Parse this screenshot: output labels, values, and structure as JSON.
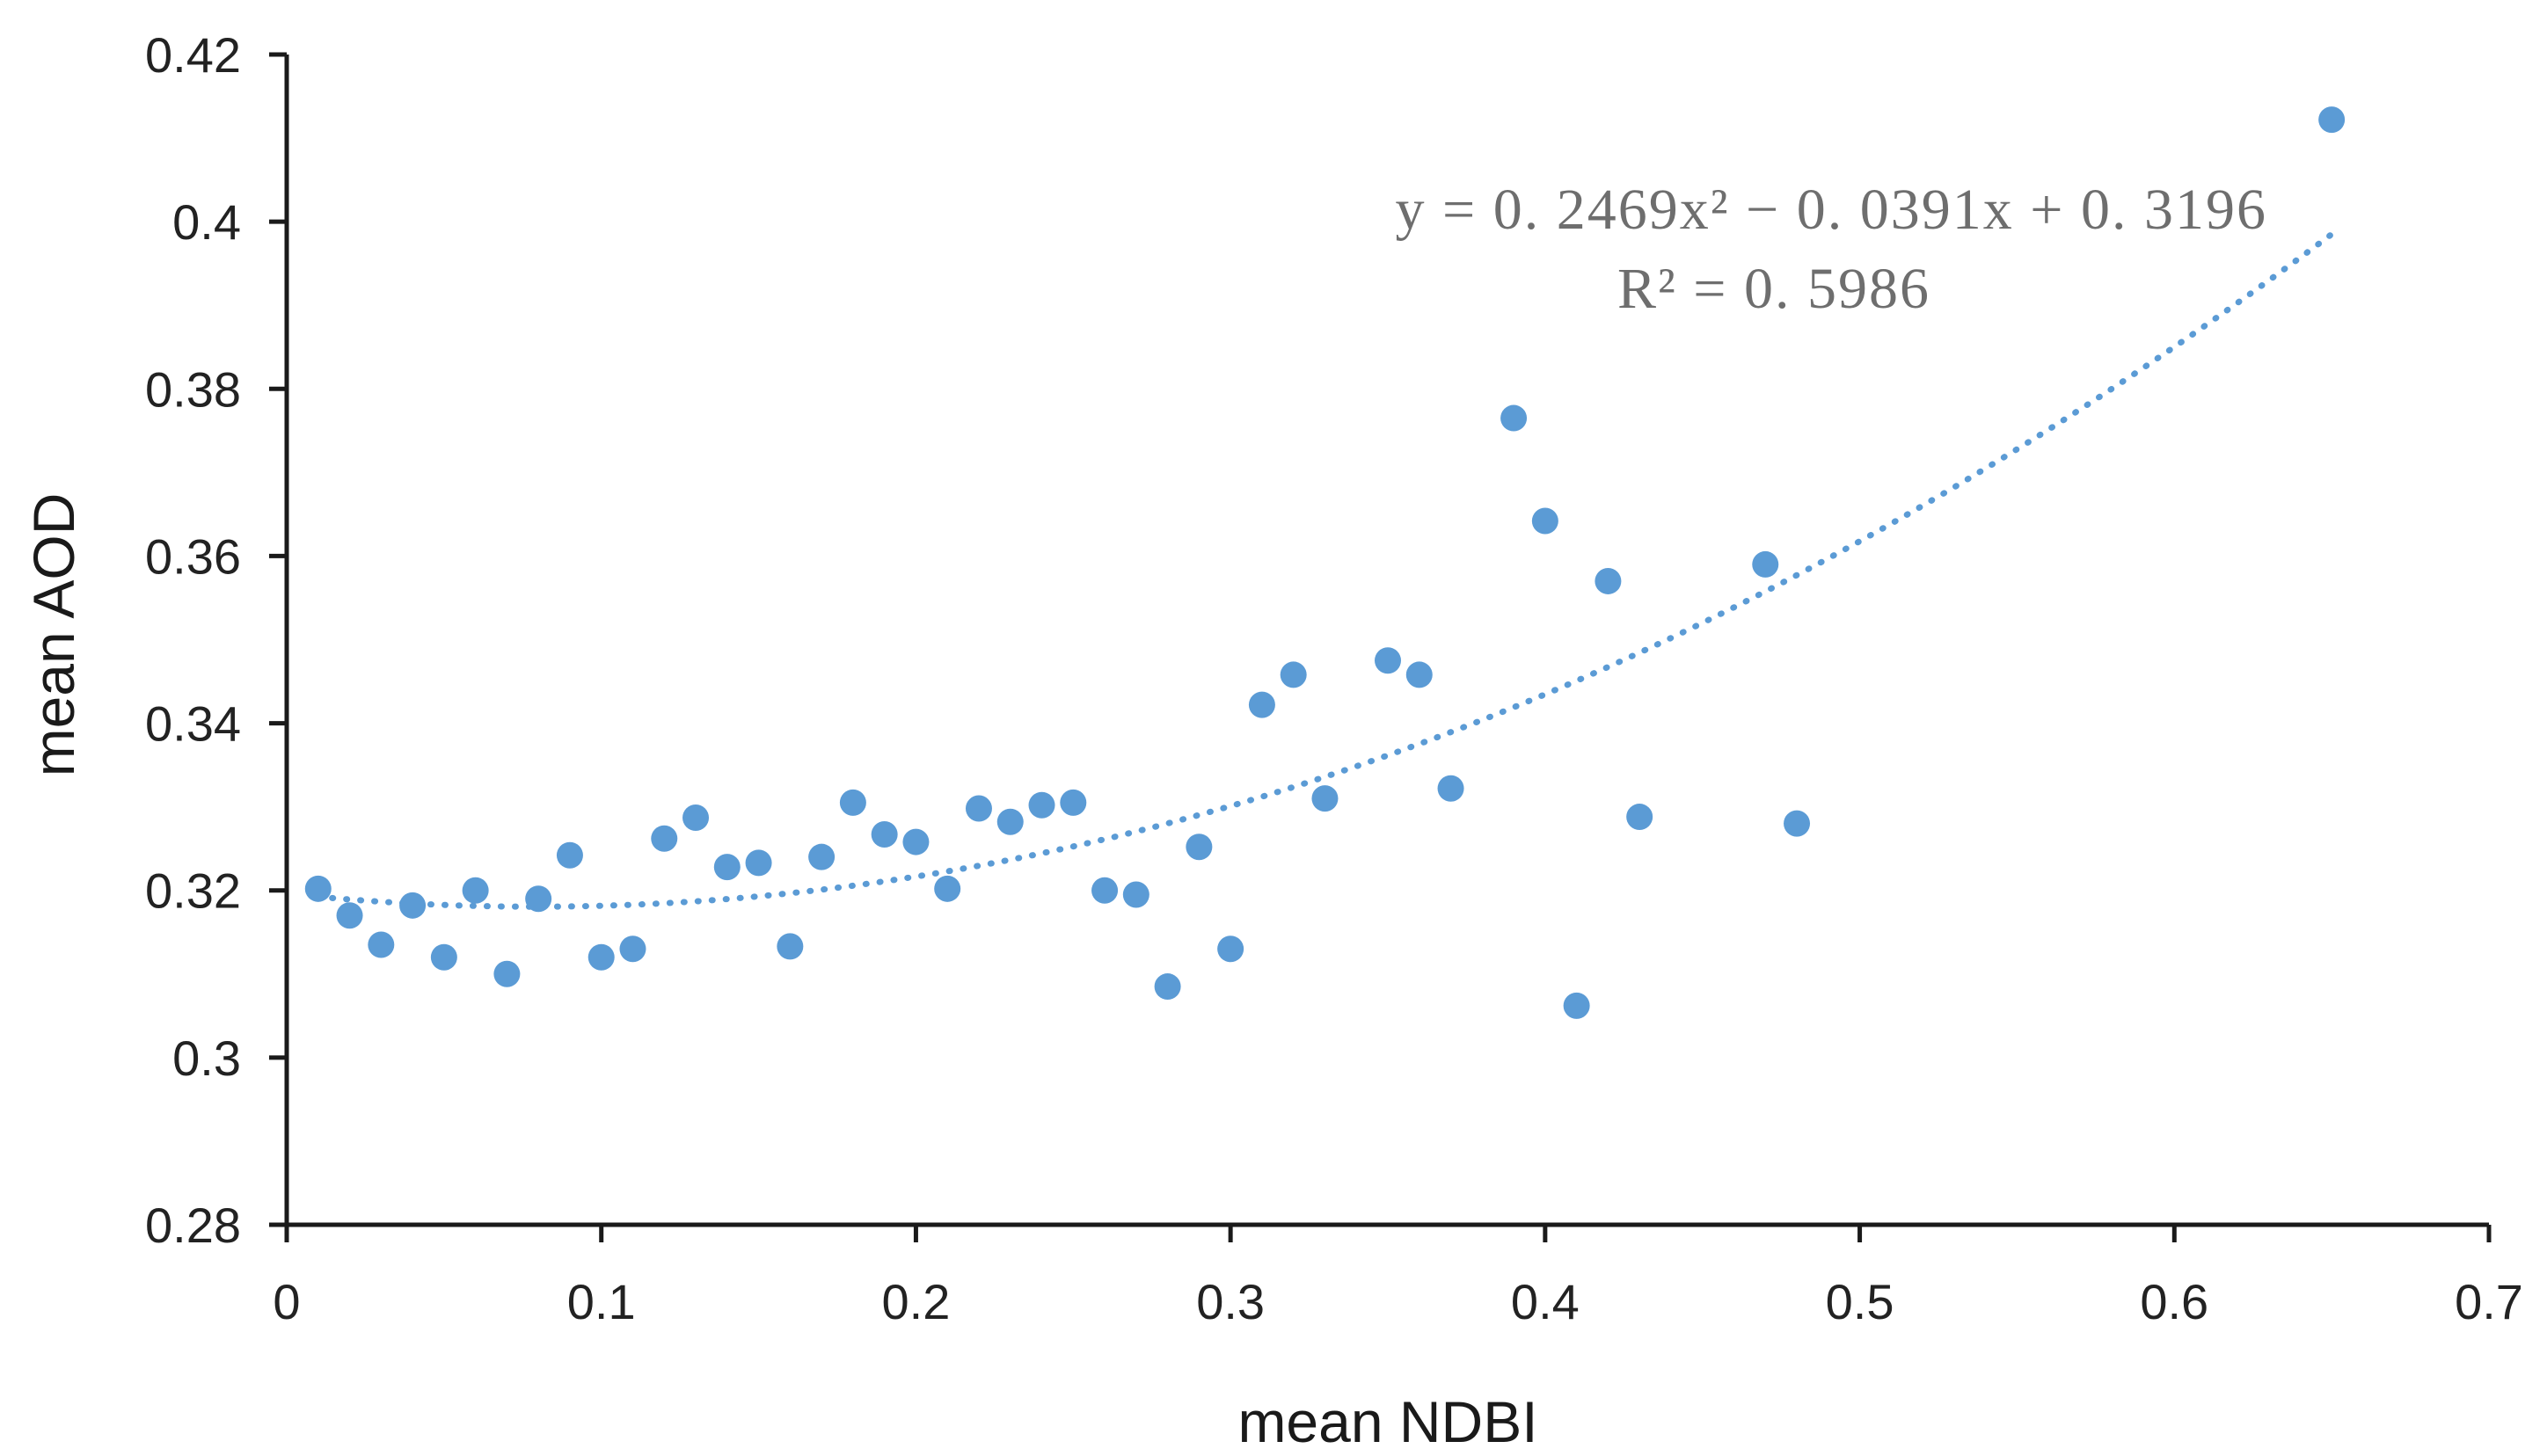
{
  "chart_data": {
    "type": "scatter",
    "title": "",
    "xlabel": "mean NDBI",
    "ylabel": "mean AOD",
    "xlim": [
      0,
      0.7
    ],
    "ylim": [
      0.28,
      0.42
    ],
    "x_ticks": [
      0,
      0.1,
      0.2,
      0.3,
      0.4,
      0.5,
      0.6,
      0.7
    ],
    "x_tick_labels": [
      "0",
      "0.1",
      "0.2",
      "0.3",
      "0.4",
      "0.5",
      "0.6",
      "0.7"
    ],
    "y_ticks": [
      0.28,
      0.3,
      0.32,
      0.34,
      0.36,
      0.38,
      0.4,
      0.42
    ],
    "y_tick_labels": [
      "0.28",
      "0.3",
      "0.32",
      "0.34",
      "0.36",
      "0.38",
      "0.4",
      "0.42"
    ],
    "grid": false,
    "legend": "none",
    "series": [
      {
        "name": "mean AOD",
        "color": "#5b9bd5",
        "points": [
          [
            0.01,
            0.3202
          ],
          [
            0.02,
            0.317
          ],
          [
            0.03,
            0.3135
          ],
          [
            0.04,
            0.3182
          ],
          [
            0.05,
            0.312
          ],
          [
            0.06,
            0.32
          ],
          [
            0.07,
            0.31
          ],
          [
            0.08,
            0.319
          ],
          [
            0.09,
            0.3242
          ],
          [
            0.1,
            0.312
          ],
          [
            0.11,
            0.313
          ],
          [
            0.12,
            0.3262
          ],
          [
            0.13,
            0.3287
          ],
          [
            0.14,
            0.3228
          ],
          [
            0.15,
            0.3233
          ],
          [
            0.16,
            0.3133
          ],
          [
            0.17,
            0.324
          ],
          [
            0.18,
            0.3305
          ],
          [
            0.19,
            0.3267
          ],
          [
            0.2,
            0.3258
          ],
          [
            0.21,
            0.3202
          ],
          [
            0.22,
            0.3298
          ],
          [
            0.23,
            0.3282
          ],
          [
            0.24,
            0.3302
          ],
          [
            0.25,
            0.3305
          ],
          [
            0.26,
            0.32
          ],
          [
            0.27,
            0.3195
          ],
          [
            0.28,
            0.3085
          ],
          [
            0.29,
            0.3252
          ],
          [
            0.3,
            0.313
          ],
          [
            0.31,
            0.3422
          ],
          [
            0.32,
            0.3458
          ],
          [
            0.33,
            0.331
          ],
          [
            0.35,
            0.3475
          ],
          [
            0.36,
            0.3458
          ],
          [
            0.37,
            0.3322
          ],
          [
            0.39,
            0.3765
          ],
          [
            0.4,
            0.3642
          ],
          [
            0.41,
            0.3062
          ],
          [
            0.42,
            0.357
          ],
          [
            0.43,
            0.3288
          ],
          [
            0.47,
            0.359
          ],
          [
            0.48,
            0.328
          ],
          [
            0.65,
            0.4122
          ]
        ]
      }
    ],
    "trendline": {
      "type": "polynomial",
      "order": 2,
      "coefficients": {
        "a": 0.2469,
        "b": -0.0391,
        "c": 0.3196
      },
      "x_range": [
        0.01,
        0.65
      ],
      "style": "dotted",
      "color": "#5b9bd5",
      "equation_label": "y = 0. 2469x² − 0. 0391x + 0. 3196",
      "r2_label": "R² = 0. 5986"
    }
  }
}
